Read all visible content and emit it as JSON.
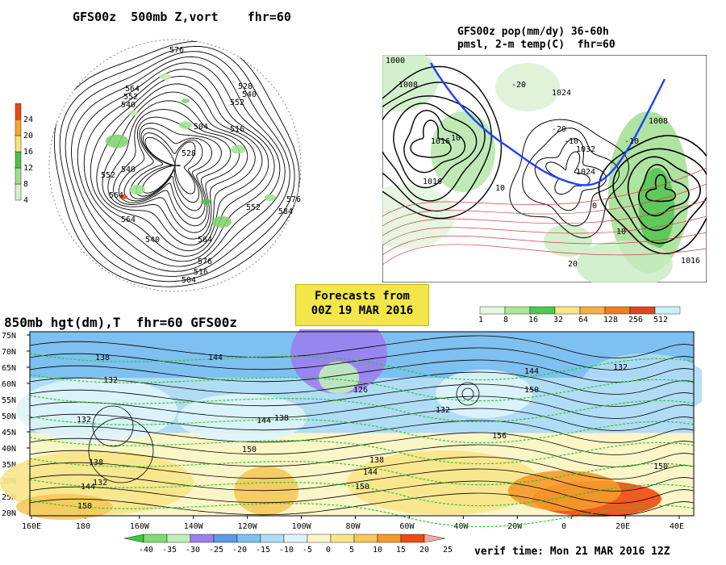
{
  "panels": {
    "polar": {
      "title": "GFS00z  500mb Z,vort    fhr=60",
      "contour_labels": [
        "576",
        "564",
        "552",
        "540",
        "528",
        "516",
        "504",
        "540",
        "552",
        "564",
        "576",
        "584",
        "528",
        "540",
        "552",
        "564",
        "576",
        "516",
        "504",
        "540",
        "552",
        "564"
      ]
    },
    "precip": {
      "title_line1": "GFS00z pop(mm/dy) 36-60h",
      "title_line2": "pmsl, 2-m temp(C)  fhr=60",
      "isobar_labels": [
        "1000",
        "1008",
        "1016",
        "1024",
        "1032",
        "1024",
        "1016",
        "1008",
        "1016"
      ],
      "temp_labels": [
        "10",
        "-20",
        "-10",
        "-20",
        "10",
        "-10",
        "0",
        "20",
        "10"
      ]
    },
    "h850": {
      "title": "850mb hgt(dm),T  fhr=60 GFS00z",
      "height_labels": [
        "138",
        "132",
        "144",
        "138",
        "144",
        "132",
        "150",
        "126",
        "138",
        "132",
        "144",
        "150",
        "156",
        "144",
        "150",
        "138",
        "132",
        "150",
        "144",
        "150",
        "132"
      ]
    }
  },
  "banner": {
    "line1": "Forecasts from",
    "line2": "00Z 19 MAR 2016"
  },
  "verif_time": "verif time: Mon 21 MAR 2016 12Z",
  "chart_data": [
    {
      "type": "heatmap",
      "title": "GFS00z  500mb Z,vort    fhr=60",
      "colorbar": {
        "levels": [
          4,
          8,
          12,
          16,
          20,
          24
        ],
        "colors": [
          "#d8f0c8",
          "#9be08a",
          "#4cc24a",
          "#f7e27a",
          "#f5a430",
          "#e84a10"
        ],
        "labels": [
          "4",
          "8",
          "12",
          "16",
          "20",
          "24"
        ]
      }
    },
    {
      "type": "heatmap",
      "title": "GFS00z pop(mm/dy) 36-60h pmsl, 2-m temp(C)  fhr=60",
      "colorbar": {
        "levels": [
          1,
          8,
          16,
          32,
          64,
          128,
          256,
          512
        ],
        "colors": [
          "#e8f8e0",
          "#a8e898",
          "#50c850",
          "#f8e88a",
          "#f5b042",
          "#f07f1a",
          "#e84020",
          "#c8f4f8"
        ],
        "labels": [
          "1",
          "8",
          "16",
          "32",
          "64",
          "128",
          "256",
          "512"
        ]
      }
    },
    {
      "type": "heatmap",
      "title": "850mb hgt(dm),T  fhr=60 GFS00z",
      "ylabels": [
        "75N",
        "70N",
        "65N",
        "60N",
        "55N",
        "50N",
        "45N",
        "40N",
        "35N",
        "30N",
        "25N",
        "20N"
      ],
      "xlabels": [
        "160E",
        "180",
        "160W",
        "140W",
        "120W",
        "100W",
        "80W",
        "60W",
        "40W",
        "20W",
        "0",
        "20E",
        "40E"
      ],
      "colorbar": {
        "levels": [
          -40,
          -35,
          -30,
          -25,
          -20,
          -15,
          -10,
          -5,
          0,
          5,
          10,
          15,
          20,
          25
        ],
        "colors": [
          "#3cc93c",
          "#80dd70",
          "#c0eebb",
          "#9b7ff0",
          "#5a9ae8",
          "#7ec0f0",
          "#b0dcf5",
          "#dff4fa",
          "#fbf6c8",
          "#f8e58a",
          "#f5c85a",
          "#f49a2a",
          "#ee4a10",
          "#f5a9a0"
        ],
        "labels": [
          "-40",
          "-35",
          "-30",
          "-25",
          "-20",
          "-15",
          "-10",
          "-5",
          "0",
          "5",
          "10",
          "15",
          "20",
          "25"
        ]
      }
    }
  ]
}
